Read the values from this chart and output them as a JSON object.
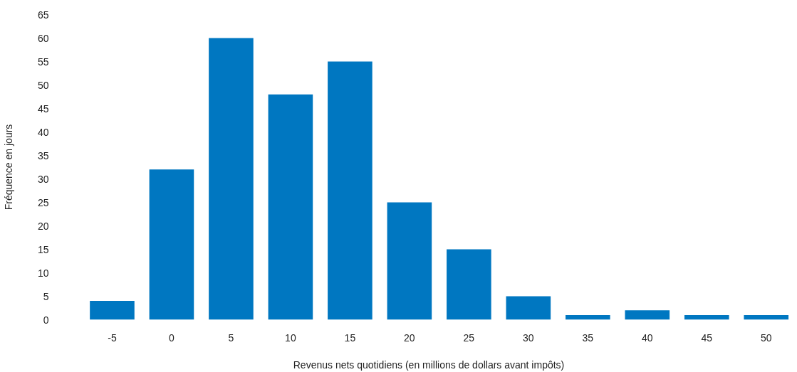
{
  "chart_data": {
    "type": "bar",
    "xlabel": "Revenus nets quotidiens (en millions de dollars avant impôts)",
    "ylabel": "Fréquence en jours",
    "categories": [
      "-5",
      "0",
      "5",
      "10",
      "15",
      "20",
      "25",
      "30",
      "35",
      "40",
      "45",
      "50"
    ],
    "values": [
      4,
      32,
      60,
      48,
      55,
      25,
      15,
      5,
      1,
      2,
      1,
      1
    ],
    "color": "#0077c1",
    "ylim": [
      0,
      65
    ],
    "yticks": [
      0,
      5,
      10,
      15,
      20,
      25,
      30,
      35,
      40,
      45,
      50,
      55,
      60,
      65
    ],
    "grid": false
  }
}
